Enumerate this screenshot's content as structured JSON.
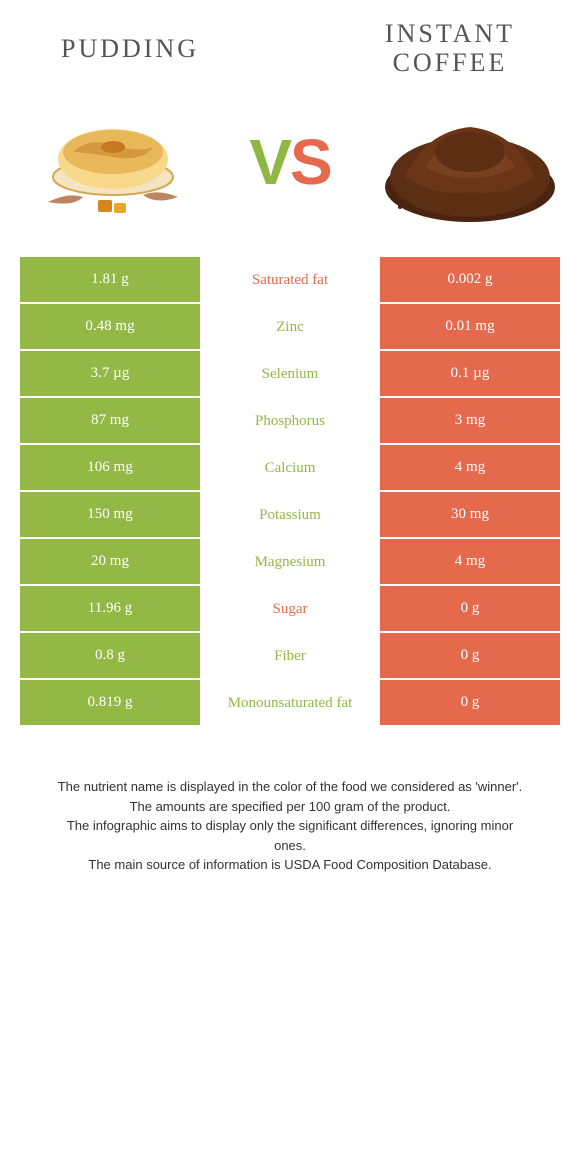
{
  "colors": {
    "green": "#93b846",
    "orange": "#e56a4d",
    "green_text": "#93b846",
    "orange_text": "#e56a4d"
  },
  "header": {
    "left_title": "Pudding",
    "right_title": "Instant coffee",
    "vs_v": "V",
    "vs_s": "S"
  },
  "rows": [
    {
      "left": "1.81 g",
      "label": "Saturated fat",
      "right": "0.002 g",
      "winner": "orange"
    },
    {
      "left": "0.48 mg",
      "label": "Zinc",
      "right": "0.01 mg",
      "winner": "green"
    },
    {
      "left": "3.7 µg",
      "label": "Selenium",
      "right": "0.1 µg",
      "winner": "green"
    },
    {
      "left": "87 mg",
      "label": "Phosphorus",
      "right": "3 mg",
      "winner": "green"
    },
    {
      "left": "106 mg",
      "label": "Calcium",
      "right": "4 mg",
      "winner": "green"
    },
    {
      "left": "150 mg",
      "label": "Potassium",
      "right": "30 mg",
      "winner": "green"
    },
    {
      "left": "20 mg",
      "label": "Magnesium",
      "right": "4 mg",
      "winner": "green"
    },
    {
      "left": "11.96 g",
      "label": "Sugar",
      "right": "0 g",
      "winner": "orange"
    },
    {
      "left": "0.8 g",
      "label": "Fiber",
      "right": "0 g",
      "winner": "green"
    },
    {
      "left": "0.819 g",
      "label": "Monounsaturated fat",
      "right": "0 g",
      "winner": "green"
    }
  ],
  "footer": {
    "line1": "The nutrient name is displayed in the color of the food we considered as 'winner'.",
    "line2": "The amounts are specified per 100 gram of the product.",
    "line3": "The infographic aims to display only the significant differences, ignoring minor ones.",
    "line4": "The main source of information is USDA Food Composition Database."
  }
}
